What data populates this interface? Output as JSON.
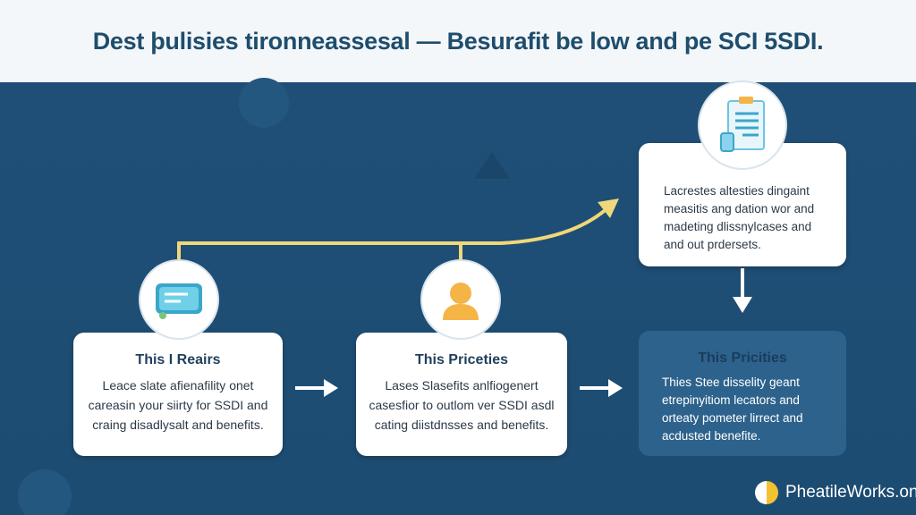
{
  "header": {
    "title": "Dest þulisies tironneassesal — Besurafit be low and pe SCI 5SDI."
  },
  "steps": [
    {
      "title": "This I Reairs",
      "text": "Leace slate afienafility onet careasin your siirty for SSDI and craing disadlysalt and benefits.",
      "icon": "chat-card-icon"
    },
    {
      "title": "This Priceties",
      "text": "Lases Slasefits anlfiogenert casesfior to outlom ver SSDI asdl cating diistdnsses and benefits.",
      "icon": "person-icon"
    },
    {
      "title": "",
      "text": "Lacrestes altesties dingaint measitis ang dation wor and madeting dlissnylcases and and out prdersets.",
      "icon": "clipboard-icon"
    },
    {
      "title": "This Pricities",
      "text": "Thies Stee disselity geant etrepinyitiom lecators and orteaty pometer lirrect and acdusted benefite."
    }
  ],
  "brand": {
    "name": "PheatileWorks.on"
  },
  "colors": {
    "background": "#1f5078",
    "accent": "#f0d77a",
    "header": "#f3f7fa"
  }
}
